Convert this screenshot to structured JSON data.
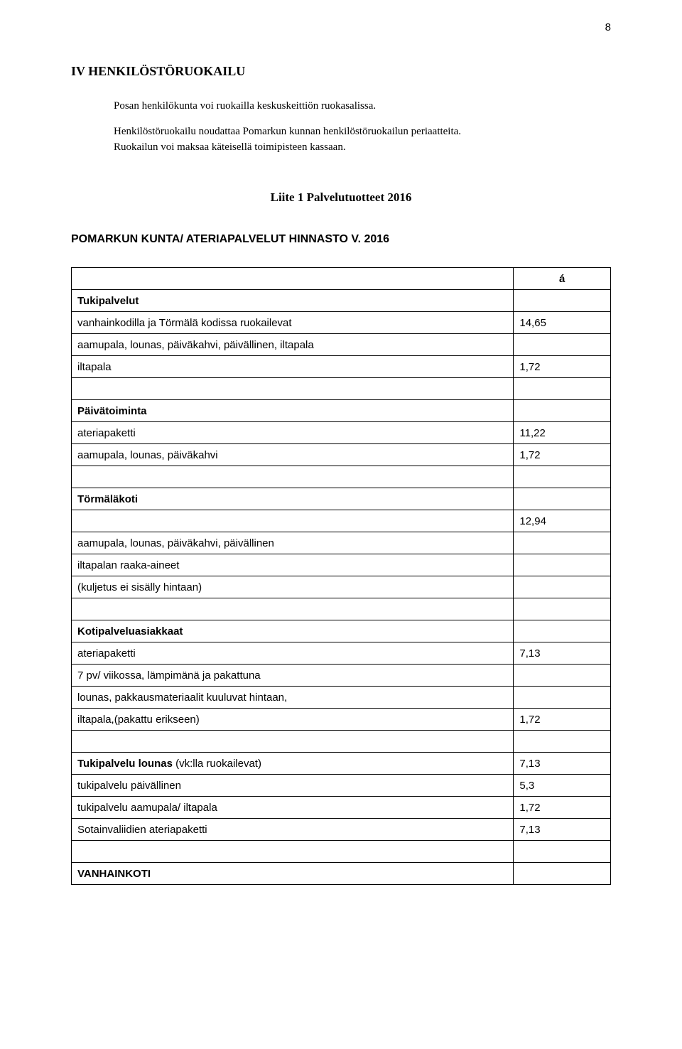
{
  "page_number": "8",
  "section_heading": "IV HENKILÖSTÖRUOKAILU",
  "paragraphs": {
    "p1": "Posan henkilökunta voi ruokailla keskuskeittiön ruokasalissa.",
    "p2a": "Henkilöstöruokailu noudattaa Pomarkun kunnan henkilöstöruokailun periaatteita.",
    "p2b": "Ruokailun voi maksaa käteisellä toimipisteen kassaan."
  },
  "appendix_title": "Liite 1 Palvelutuotteet 2016",
  "table_title": "POMARKUN KUNTA/ ATERIAPALVELUT HINNASTO V. 2016",
  "col_header_right": "á",
  "rows": [
    {
      "label": "Tukipalvelut",
      "value": "",
      "bold": true
    },
    {
      "label": "vanhainkodilla ja Törmälä kodissa ruokailevat",
      "value": "14,65",
      "bold": false
    },
    {
      "label": "aamupala, lounas, päiväkahvi, päivällinen, iltapala",
      "value": "",
      "bold": false
    },
    {
      "label": "iltapala",
      "value": "1,72",
      "bold": false
    },
    {
      "label": "",
      "value": "",
      "bold": false
    },
    {
      "label": "Päivätoiminta",
      "value": "",
      "bold": true
    },
    {
      "label": "ateriapaketti",
      "value": "11,22",
      "bold": false
    },
    {
      "label": "aamupala, lounas, päiväkahvi",
      "value": "1,72",
      "bold": false
    },
    {
      "label": "",
      "value": "",
      "bold": false
    },
    {
      "label": "Törmäläkoti",
      "value": "",
      "bold": true
    },
    {
      "label": "",
      "value": "12,94",
      "bold": false
    },
    {
      "label": "aamupala, lounas, päiväkahvi, päivällinen",
      "value": "",
      "bold": false
    },
    {
      "label": "iltapalan raaka-aineet",
      "value": "",
      "bold": false
    },
    {
      "label": "(kuljetus ei sisälly hintaan)",
      "value": "",
      "bold": false
    },
    {
      "label": "",
      "value": "",
      "bold": false
    },
    {
      "label": "Kotipalveluasiakkaat",
      "value": "",
      "bold": true
    },
    {
      "label": "ateriapaketti",
      "value": "7,13",
      "bold": false
    },
    {
      "label": "7 pv/ viikossa, lämpimänä ja pakattuna",
      "value": "",
      "bold": false
    },
    {
      "label": "lounas, pakkausmateriaalit kuuluvat hintaan,",
      "value": "",
      "bold": false
    },
    {
      "label": "iltapala,(pakattu erikseen)",
      "value": "1,72",
      "bold": false
    },
    {
      "label": "",
      "value": "",
      "bold": false
    },
    {
      "label": "Tukipalvelu lounas (vk:lla ruokailevat)",
      "value": "7,13",
      "bold": false,
      "labelHtml": "<b>Tukipalvelu lounas</b> (vk:lla ruokailevat)"
    },
    {
      "label": "tukipalvelu päivällinen",
      "value": "5,3",
      "bold": false
    },
    {
      "label": "tukipalvelu aamupala/ iltapala",
      "value": "1,72",
      "bold": false
    },
    {
      "label": "Sotainvaliidien ateriapaketti",
      "value": "7,13",
      "bold": false
    },
    {
      "label": "",
      "value": "",
      "bold": false
    },
    {
      "label": "VANHAINKOTI",
      "value": "",
      "bold": true
    }
  ]
}
